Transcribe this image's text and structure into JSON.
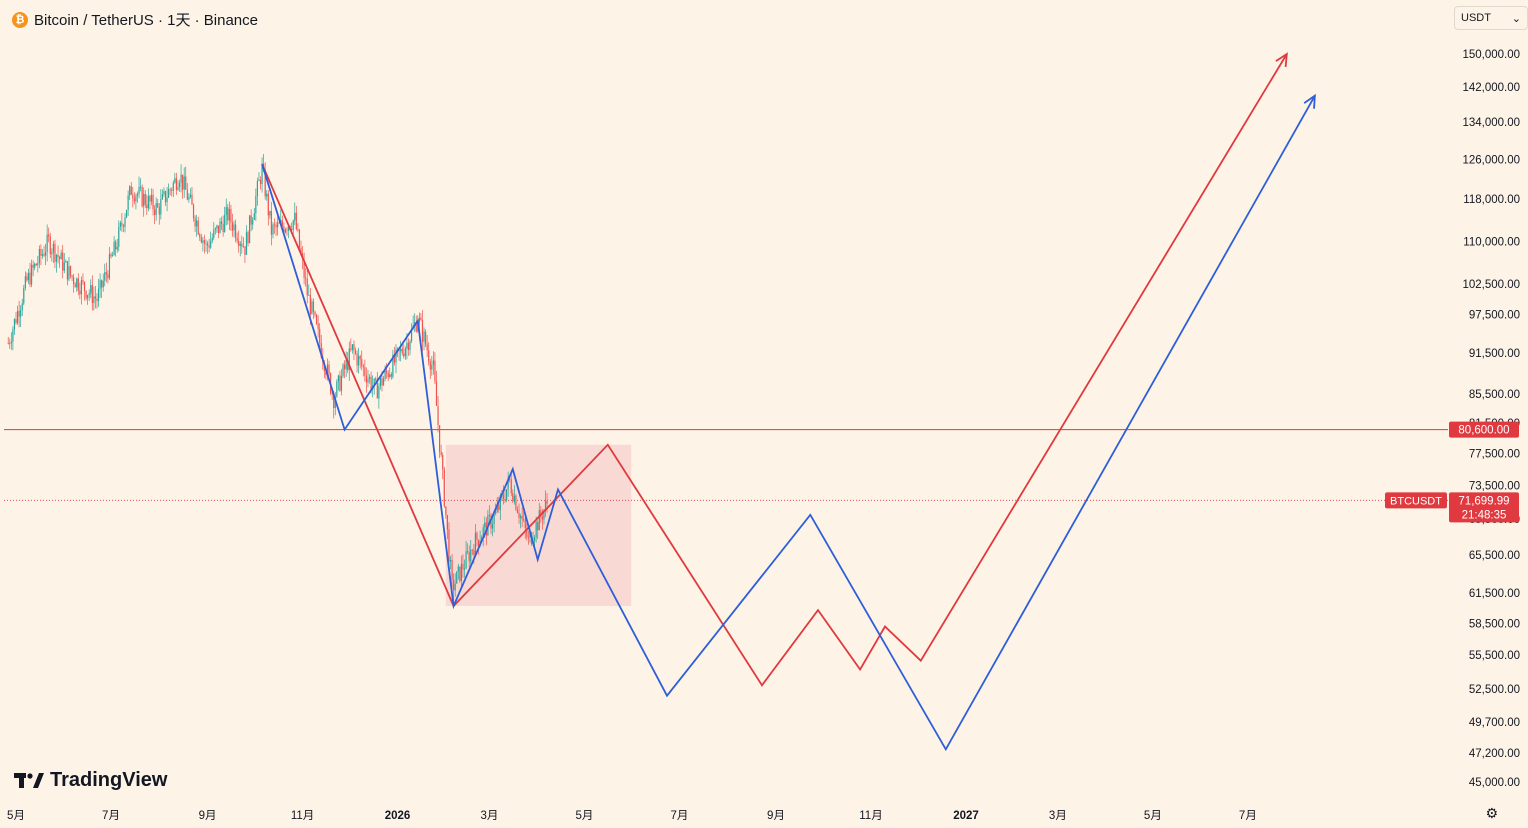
{
  "header": {
    "symbol": "Bitcoin / TetherUS · 1天 · Binance",
    "coin_icon": "bitcoin-icon"
  },
  "currency_select": {
    "value": "USDT"
  },
  "branding": {
    "logo_text": "TradingView"
  },
  "colors": {
    "background": "#fdf3e6",
    "red": "#e0393f",
    "blue": "#2e5fd8",
    "zone": "#f8d4cf"
  },
  "chart_data": {
    "type": "candlestick",
    "symbol": "BTCUSDT",
    "y_scale": "log",
    "x_tick_labels": [
      "5月",
      "7月",
      "9月",
      "11月",
      "2026",
      "3月",
      "5月",
      "7月",
      "9月",
      "11月",
      "2027",
      "3月",
      "5月",
      "7月"
    ],
    "y_tick_labels": [
      "150,000.00",
      "142,000.00",
      "134,000.00",
      "126,000.00",
      "118,000.00",
      "110,000.00",
      "102,500.00",
      "97,500.00",
      "91,500.00",
      "85,500.00",
      "81,500.00",
      "77,500.00",
      "73,500.00",
      "69,500.00",
      "65,500.00",
      "61,500.00",
      "58,500.00",
      "55,500.00",
      "52,500.00",
      "49,700.00",
      "47,200.00",
      "45,000.00"
    ],
    "y_tick_values": [
      150000,
      142000,
      134000,
      126000,
      118000,
      110000,
      102500,
      97500,
      91500,
      85500,
      81500,
      77500,
      73500,
      69500,
      65500,
      61500,
      58500,
      55500,
      52500,
      49700,
      47200,
      45000
    ],
    "horizontal_line": {
      "value": 80600,
      "label": "80,600.00"
    },
    "last_price": {
      "symbol_label": "BTCUSDT",
      "value": 71699.99,
      "price_label": "71,699.99",
      "countdown": "21:48:35"
    },
    "price_path_approx": [
      {
        "t": "2025-04-26",
        "close": 93000
      },
      {
        "t": "2025-05-08",
        "close": 103000
      },
      {
        "t": "2025-05-22",
        "close": 110000
      },
      {
        "t": "2025-06-05",
        "close": 104000
      },
      {
        "t": "2025-06-22",
        "close": 100000
      },
      {
        "t": "2025-07-04",
        "close": 109000
      },
      {
        "t": "2025-07-14",
        "close": 120000
      },
      {
        "t": "2025-07-31",
        "close": 116000
      },
      {
        "t": "2025-08-14",
        "close": 123000
      },
      {
        "t": "2025-08-31",
        "close": 109000
      },
      {
        "t": "2025-09-14",
        "close": 115000
      },
      {
        "t": "2025-09-25",
        "close": 109000
      },
      {
        "t": "2025-10-06",
        "close": 124000
      },
      {
        "t": "2025-10-12",
        "close": 112000
      },
      {
        "t": "2025-10-27",
        "close": 114000
      },
      {
        "t": "2025-11-04",
        "close": 101000
      },
      {
        "t": "2025-11-21",
        "close": 85000
      },
      {
        "t": "2025-12-03",
        "close": 92000
      },
      {
        "t": "2025-12-18",
        "close": 86000
      },
      {
        "t": "2026-01-07",
        "close": 93000
      },
      {
        "t": "2026-01-14",
        "close": 97000
      },
      {
        "t": "2026-01-24",
        "close": 89000
      },
      {
        "t": "2026-02-05",
        "close": 62000
      },
      {
        "t": "2026-02-20",
        "close": 67000
      },
      {
        "t": "2026-03-05",
        "close": 70000
      },
      {
        "t": "2026-03-14",
        "close": 74000
      },
      {
        "t": "2026-03-26",
        "close": 67000
      },
      {
        "t": "2026-04-08",
        "close": 71700
      }
    ],
    "zone": {
      "t_start": "2026-02-01",
      "t_end": "2026-05-31",
      "low": 60200,
      "high": 78600
    },
    "projection_red": [
      {
        "t": "2025-10-06",
        "v": 125000
      },
      {
        "t": "2026-02-06",
        "v": 60200
      },
      {
        "t": "2026-05-16",
        "v": 78600
      },
      {
        "t": "2026-08-23",
        "v": 52800
      },
      {
        "t": "2026-09-28",
        "v": 59800
      },
      {
        "t": "2026-10-25",
        "v": 54200
      },
      {
        "t": "2026-11-10",
        "v": 58200
      },
      {
        "t": "2026-12-03",
        "v": 55000
      },
      {
        "t": "2027-07-26",
        "v": 150000
      }
    ],
    "projection_blue": [
      {
        "t": "2025-10-06",
        "v": 125000
      },
      {
        "t": "2025-11-28",
        "v": 80600
      },
      {
        "t": "2026-01-14",
        "v": 96500
      },
      {
        "t": "2026-02-06",
        "v": 60200
      },
      {
        "t": "2026-03-16",
        "v": 75500
      },
      {
        "t": "2026-04-01",
        "v": 65000
      },
      {
        "t": "2026-04-14",
        "v": 73000
      },
      {
        "t": "2026-06-23",
        "v": 51900
      },
      {
        "t": "2026-09-23",
        "v": 70000
      },
      {
        "t": "2026-12-19",
        "v": 47500
      },
      {
        "t": "2027-08-13",
        "v": 140000
      }
    ]
  }
}
